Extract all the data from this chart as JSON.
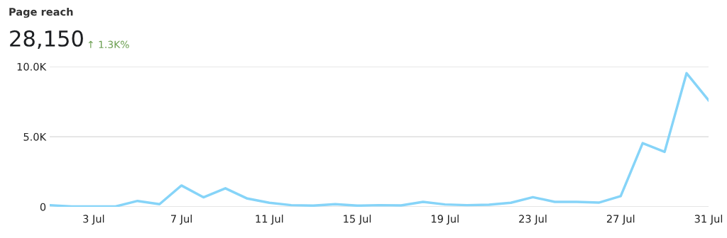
{
  "chart_data": {
    "type": "line",
    "title": "Page reach",
    "annotations": [
      "28,150",
      "↑ 1.3K%"
    ],
    "categories": [
      null,
      null,
      "3 Jul",
      null,
      null,
      null,
      "7 Jul",
      null,
      null,
      null,
      "11 Jul",
      null,
      null,
      null,
      "15 Jul",
      null,
      null,
      null,
      "19 Jul",
      null,
      null,
      null,
      "23 Jul",
      null,
      null,
      null,
      "27 Jul",
      null,
      null,
      null,
      "31 Jul"
    ],
    "series": [
      {
        "color": "#86d4f8",
        "values": [
          120,
          30,
          30,
          30,
          420,
          190,
          1520,
          680,
          1320,
          590,
          290,
          120,
          85,
          190,
          85,
          120,
          100,
          350,
          170,
          120,
          150,
          290,
          690,
          350,
          350,
          300,
          760,
          4540,
          3920,
          9530,
          7600
        ]
      }
    ],
    "ylim": [
      0,
      10000
    ],
    "yticks": [
      {
        "value": 0,
        "label": "0"
      },
      {
        "value": 5000,
        "label": "5.0K"
      },
      {
        "value": 10000,
        "label": "10.0K"
      }
    ],
    "grid": "y",
    "marker": "none",
    "line_style": "solid"
  }
}
